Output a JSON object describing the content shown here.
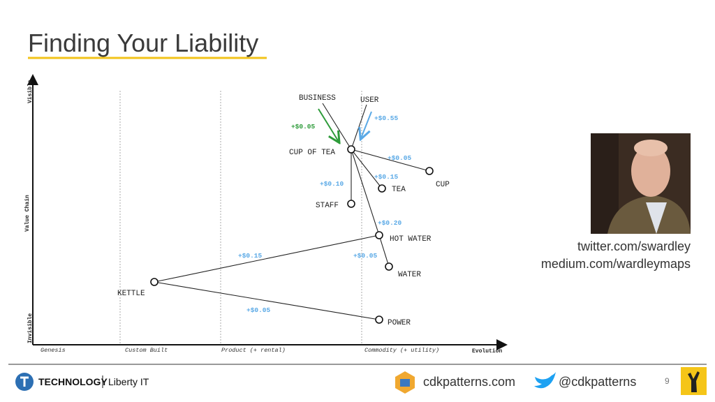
{
  "header": {
    "title": "Finding Your Liability"
  },
  "map": {
    "axis": {
      "visible": "Visible",
      "value_chain": "Value Chain",
      "invisible": "Invisible",
      "evolution": "Evolution",
      "stages": [
        "Genesis",
        "Custom Built",
        "Product (+ rental)",
        "Commodity (+ utility)"
      ]
    },
    "nodes": [
      {
        "label": "BUSINESS"
      },
      {
        "label": "USER"
      },
      {
        "label": "CUP OF TEA"
      },
      {
        "label": "CUP"
      },
      {
        "label": "TEA"
      },
      {
        "label": "STAFF"
      },
      {
        "label": "HOT WATER"
      },
      {
        "label": "WATER"
      },
      {
        "label": "KETTLE"
      },
      {
        "label": "POWER"
      }
    ],
    "costs": [
      "+$0.05",
      "+$0.55",
      "+$0.05",
      "+$0.15",
      "+$0.10",
      "+$0.20",
      "+$0.15",
      "+$0.05",
      "+$0.05"
    ]
  },
  "contact": [
    "twitter.com/swardley",
    "medium.com/wardleymaps"
  ],
  "footer": {
    "brand": "TECHNOLOGY",
    "company": "Liberty IT",
    "site": "cdkpatterns.com",
    "handle": "@cdkpatterns",
    "page": 9
  }
}
